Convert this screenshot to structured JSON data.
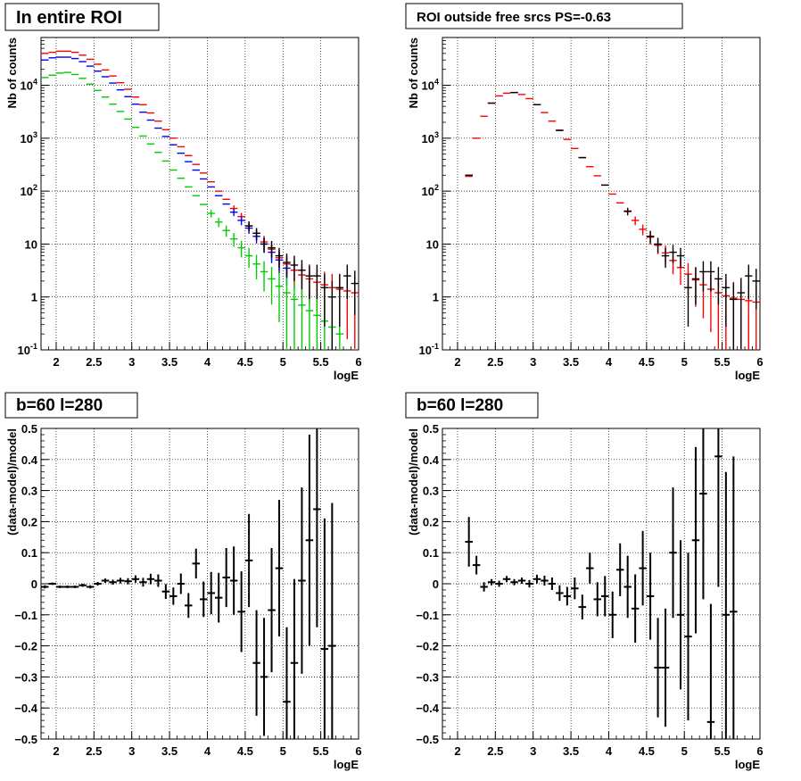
{
  "chart_data": [
    {
      "type": "scatter",
      "title": "In entire ROI",
      "xlabel": "logE",
      "ylabel": "Nb of counts",
      "xlim": [
        1.8,
        6
      ],
      "ylim": [
        0.1,
        80000
      ],
      "yscale": "log",
      "grid": true,
      "xticks": [
        "2",
        "2.5",
        "3",
        "3.5",
        "4",
        "4.5",
        "5",
        "5.5",
        "6"
      ],
      "yticks": [
        "10^{-1}",
        "1",
        "10",
        "10^{2}",
        "10^{3}",
        "10^{4}"
      ],
      "series": [
        {
          "color": "#ff0000",
          "x": [
            1.85,
            1.95,
            2.05,
            2.15,
            2.25,
            2.35,
            2.45,
            2.55,
            2.65,
            2.75,
            2.85,
            2.95,
            3.05,
            3.15,
            3.25,
            3.35,
            3.45,
            3.55,
            3.65,
            3.75,
            3.85,
            3.95,
            4.05,
            4.15,
            4.25,
            4.35,
            4.45,
            4.55,
            4.65,
            4.75,
            4.85,
            4.95,
            5.05,
            5.15,
            5.25,
            5.35,
            5.45,
            5.55,
            5.65,
            5.75,
            5.85,
            5.95
          ],
          "y": [
            40000,
            42000,
            44000,
            44000,
            42000,
            37000,
            31000,
            25000,
            19500,
            15000,
            11200,
            8400,
            6000,
            4300,
            3000,
            2100,
            1450,
            1000,
            690,
            470,
            320,
            220,
            150,
            100,
            70,
            47,
            33,
            22,
            16,
            11,
            8,
            5.5,
            4.2,
            3.2,
            2.6,
            2.2,
            1.9,
            1.7,
            1.5,
            1.4,
            1.3,
            1.2
          ]
        },
        {
          "color": "#0000ff",
          "x": [
            1.85,
            1.95,
            2.05,
            2.15,
            2.25,
            2.35,
            2.45,
            2.55,
            2.65,
            2.75,
            2.85,
            2.95,
            3.05,
            3.15,
            3.25,
            3.35,
            3.45,
            3.55,
            3.65,
            3.75,
            3.85,
            3.95,
            4.05,
            4.15,
            4.25,
            4.35,
            4.45,
            4.55,
            4.65,
            4.75,
            4.85,
            4.95,
            5.05
          ],
          "y": [
            30000,
            33000,
            34000,
            34000,
            32000,
            28000,
            23000,
            18500,
            14500,
            11000,
            8200,
            6100,
            4400,
            3100,
            2200,
            1550,
            1080,
            750,
            520,
            360,
            250,
            170,
            120,
            82,
            57,
            40,
            28,
            20,
            14,
            10,
            7,
            5,
            3.5
          ]
        },
        {
          "color": "#00cc00",
          "x": [
            1.85,
            1.95,
            2.05,
            2.15,
            2.25,
            2.35,
            2.45,
            2.55,
            2.65,
            2.75,
            2.85,
            2.95,
            3.05,
            3.15,
            3.25,
            3.35,
            3.45,
            3.55,
            3.65,
            3.75,
            3.85,
            3.95,
            4.05,
            4.15,
            4.25,
            4.35,
            4.45,
            4.55,
            4.65,
            4.75,
            4.85,
            4.95,
            5.05,
            5.15,
            5.25,
            5.35,
            5.45,
            5.55,
            5.65,
            5.75
          ],
          "y": [
            14000,
            15500,
            17000,
            17500,
            16000,
            13500,
            10500,
            8000,
            6000,
            4400,
            3200,
            2300,
            1600,
            1100,
            780,
            540,
            370,
            250,
            175,
            120,
            82,
            56,
            38,
            26,
            18,
            12.5,
            8.5,
            6,
            4.2,
            3,
            2.2,
            1.6,
            1.2,
            0.9,
            0.7,
            0.55,
            0.45,
            0.35,
            0.27,
            0.2
          ]
        },
        {
          "color": "#000000",
          "x": [
            4.55,
            4.65,
            4.75,
            4.85,
            4.95,
            5.05,
            5.15,
            5.25,
            5.35,
            5.45,
            5.55,
            5.65,
            5.75,
            5.85,
            5.95
          ],
          "y": [
            22,
            16,
            10,
            8.5,
            6,
            4.5,
            4,
            3.2,
            2.5,
            2.5,
            1.5,
            1,
            1.5,
            2.5,
            1.8
          ]
        }
      ]
    },
    {
      "type": "scatter",
      "title": "ROI outside free srcs PS=-0.63",
      "xlabel": "logE",
      "ylabel": "Nb of counts",
      "xlim": [
        1.8,
        6
      ],
      "ylim": [
        0.1,
        80000
      ],
      "yscale": "log",
      "grid": true,
      "xticks": [
        "2",
        "2.5",
        "3",
        "3.5",
        "4",
        "4.5",
        "5",
        "5.5",
        "6"
      ],
      "yticks": [
        "10^{-1}",
        "1",
        "10",
        "10^{2}",
        "10^{3}",
        "10^{4}"
      ],
      "series": [
        {
          "color": "#ff0000",
          "x": [
            2.15,
            2.25,
            2.35,
            2.45,
            2.55,
            2.65,
            2.75,
            2.85,
            2.95,
            3.05,
            3.15,
            3.25,
            3.35,
            3.45,
            3.55,
            3.65,
            3.75,
            3.85,
            3.95,
            4.05,
            4.15,
            4.25,
            4.35,
            4.45,
            4.55,
            4.65,
            4.75,
            4.85,
            4.95,
            5.05,
            5.15,
            5.25,
            5.35,
            5.45,
            5.55,
            5.65,
            5.75,
            5.85,
            5.95
          ],
          "y": [
            190,
            1000,
            2600,
            4600,
            6300,
            7100,
            7300,
            6700,
            5600,
            4300,
            3050,
            2100,
            1420,
            950,
            640,
            430,
            290,
            195,
            130,
            88,
            60,
            41,
            28,
            19,
            13.5,
            9.5,
            6.8,
            4.9,
            3.6,
            2.7,
            2.1,
            1.7,
            1.4,
            1.2,
            1.05,
            0.95,
            0.9,
            0.85,
            0.8
          ]
        },
        {
          "color": "#000000",
          "x": [
            2.15,
            2.45,
            2.75,
            3.05,
            3.35,
            3.65,
            3.95,
            4.25,
            4.55,
            4.65,
            4.75,
            4.85,
            4.95,
            5.05,
            5.15,
            5.25,
            5.35,
            5.45,
            5.55,
            5.65,
            5.75,
            5.85,
            5.95
          ],
          "y": [
            200,
            4600,
            7300,
            4300,
            1400,
            430,
            130,
            42,
            14,
            10,
            6,
            7,
            6,
            1.5,
            2.2,
            3,
            3,
            2.2,
            1.5,
            0.9,
            1.2,
            2.5,
            2
          ]
        }
      ]
    },
    {
      "type": "scatter",
      "title": "b=60 l=280",
      "xlabel": "logE",
      "ylabel": "(data-model)/model",
      "xlim": [
        1.8,
        6
      ],
      "ylim": [
        -0.5,
        0.5
      ],
      "grid": true,
      "xticks": [
        "2",
        "2.5",
        "3",
        "3.5",
        "4",
        "4.5",
        "5",
        "5.5",
        "6"
      ],
      "yticks": [
        "-0.5",
        "-0.4",
        "-0.3",
        "-0.2",
        "-0.1",
        "0",
        "0.1",
        "0.2",
        "0.3",
        "0.4",
        "0.5"
      ],
      "series": [
        {
          "color": "#000000",
          "x": [
            1.85,
            1.95,
            2.05,
            2.15,
            2.25,
            2.35,
            2.45,
            2.55,
            2.65,
            2.75,
            2.85,
            2.95,
            3.05,
            3.15,
            3.25,
            3.35,
            3.45,
            3.55,
            3.65,
            3.75,
            3.85,
            3.95,
            4.05,
            4.15,
            4.25,
            4.35,
            4.45,
            4.55,
            4.65,
            4.75,
            4.85,
            4.95,
            5.05,
            5.15,
            5.25,
            5.35,
            5.45,
            5.55,
            5.65
          ],
          "y": [
            -0.01,
            0.0,
            -0.01,
            -0.01,
            -0.01,
            -0.005,
            -0.01,
            0.0,
            0.01,
            0.005,
            0.01,
            0.008,
            0.015,
            0.005,
            0.015,
            0.01,
            -0.025,
            -0.04,
            0.0,
            -0.07,
            0.065,
            -0.05,
            -0.03,
            -0.045,
            0.02,
            0.01,
            -0.09,
            0.075,
            -0.255,
            -0.3,
            -0.085,
            0.05,
            -0.38,
            -0.255,
            0.01,
            0.14,
            0.24,
            -0.21,
            -0.2
          ],
          "err": [
            0.005,
            0.004,
            0.004,
            0.004,
            0.004,
            0.005,
            0.005,
            0.006,
            0.007,
            0.008,
            0.009,
            0.01,
            0.012,
            0.014,
            0.017,
            0.02,
            0.024,
            0.028,
            0.033,
            0.04,
            0.048,
            0.057,
            0.068,
            0.08,
            0.095,
            0.11,
            0.13,
            0.15,
            0.17,
            0.19,
            0.2,
            0.22,
            0.24,
            0.27,
            0.3,
            0.34,
            0.38,
            0.42,
            0.46
          ]
        }
      ]
    },
    {
      "type": "scatter",
      "title": "b=60 l=280",
      "xlabel": "logE",
      "ylabel": "(data-model)/model",
      "xlim": [
        1.8,
        6
      ],
      "ylim": [
        -0.5,
        0.5
      ],
      "grid": true,
      "xticks": [
        "2",
        "2.5",
        "3",
        "3.5",
        "4",
        "4.5",
        "5",
        "5.5",
        "6"
      ],
      "yticks": [
        "-0.5",
        "-0.4",
        "-0.3",
        "-0.2",
        "-0.1",
        "0",
        "0.1",
        "0.2",
        "0.3",
        "0.4",
        "0.5"
      ],
      "series": [
        {
          "color": "#000000",
          "x": [
            2.15,
            2.25,
            2.35,
            2.45,
            2.55,
            2.65,
            2.75,
            2.85,
            2.95,
            3.05,
            3.15,
            3.25,
            3.35,
            3.45,
            3.55,
            3.65,
            3.75,
            3.85,
            3.95,
            4.05,
            4.15,
            4.25,
            4.35,
            4.45,
            4.55,
            4.65,
            4.75,
            4.85,
            4.95,
            5.05,
            5.15,
            5.25,
            5.35,
            5.45,
            5.55,
            5.65
          ],
          "y": [
            0.135,
            0.06,
            -0.01,
            0.005,
            0.0,
            0.015,
            0.005,
            0.01,
            0.0,
            0.015,
            0.01,
            0.0,
            -0.03,
            -0.04,
            -0.015,
            -0.075,
            0.05,
            -0.05,
            -0.04,
            -0.1,
            0.045,
            -0.01,
            -0.08,
            0.05,
            -0.04,
            -0.27,
            -0.27,
            0.1,
            -0.1,
            -0.17,
            0.14,
            0.29,
            -0.445,
            0.41,
            -0.1,
            -0.09
          ],
          "err": [
            0.08,
            0.03,
            0.015,
            0.01,
            0.01,
            0.01,
            0.01,
            0.01,
            0.012,
            0.014,
            0.016,
            0.02,
            0.025,
            0.03,
            0.035,
            0.04,
            0.05,
            0.055,
            0.065,
            0.075,
            0.085,
            0.1,
            0.11,
            0.12,
            0.14,
            0.16,
            0.19,
            0.21,
            0.24,
            0.27,
            0.3,
            0.34,
            0.38,
            0.42,
            0.46,
            0.5
          ]
        }
      ]
    }
  ]
}
